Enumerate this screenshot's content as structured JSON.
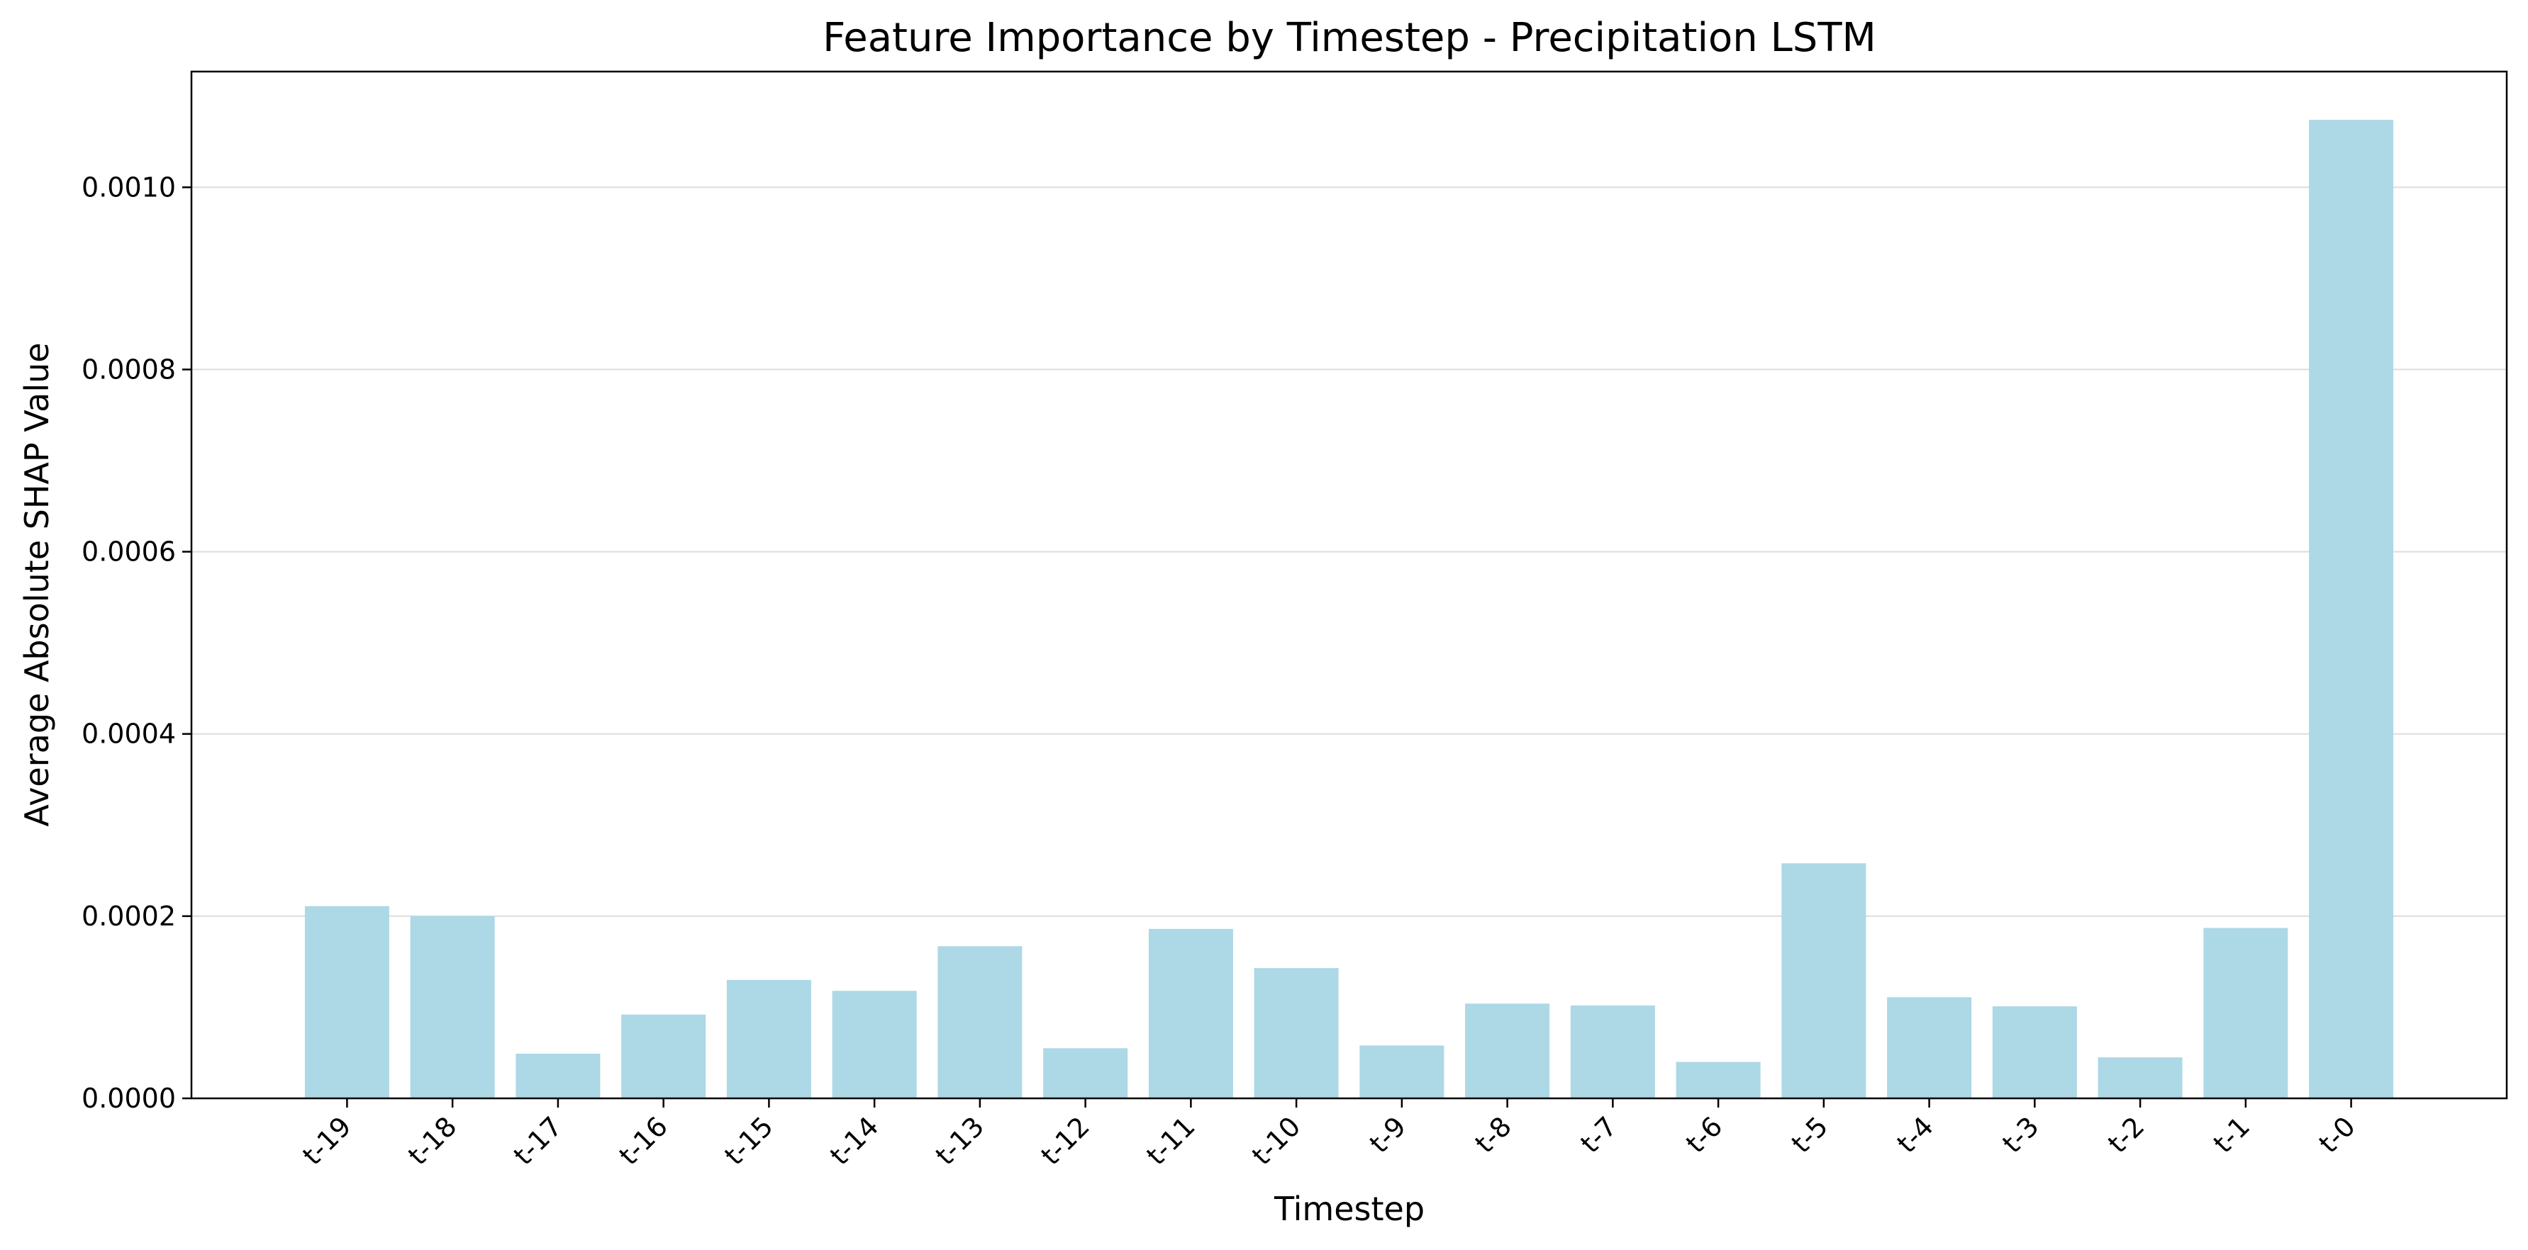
{
  "chart_data": {
    "type": "bar",
    "title": "Feature Importance by Timestep - Precipitation LSTM",
    "xlabel": "Timestep",
    "ylabel": "Average Absolute SHAP Value",
    "categories": [
      "t-19",
      "t-18",
      "t-17",
      "t-16",
      "t-15",
      "t-14",
      "t-13",
      "t-12",
      "t-11",
      "t-10",
      "t-9",
      "t-8",
      "t-7",
      "t-6",
      "t-5",
      "t-4",
      "t-3",
      "t-2",
      "t-1",
      "t-0"
    ],
    "values": [
      0.000211,
      0.0002,
      4.9e-05,
      9.2e-05,
      0.00013,
      0.000118,
      0.000167,
      5.5e-05,
      0.000186,
      0.000143,
      5.8e-05,
      0.000104,
      0.000102,
      4e-05,
      0.000258,
      0.000111,
      0.000101,
      4.5e-05,
      0.000187,
      0.001074
    ],
    "ylim": [
      0,
      0.001127
    ],
    "yticks": [
      0.0,
      0.0002,
      0.0004,
      0.0006,
      0.0008,
      0.001
    ],
    "ytick_labels": [
      "0.0000",
      "0.0002",
      "0.0004",
      "0.0006",
      "0.0008",
      "0.0010"
    ],
    "grid": "y",
    "bar_color": "#ADD8E6"
  }
}
